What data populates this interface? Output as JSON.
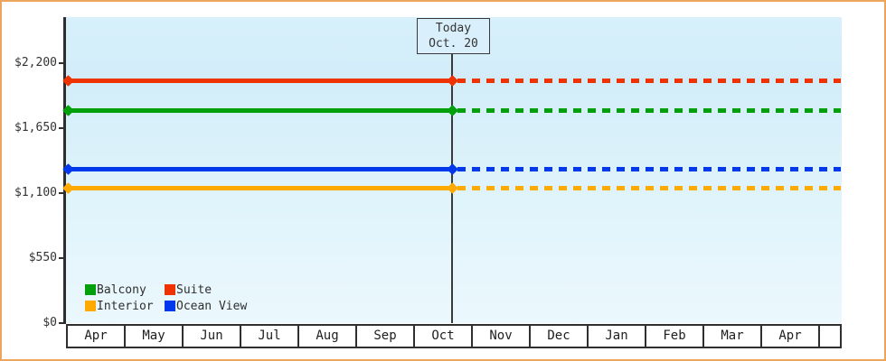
{
  "window": {
    "border_color": "#eba55d",
    "background": "#ffffff"
  },
  "chart": {
    "today_box": {
      "line1": "Today",
      "line2": "Oct. 20"
    },
    "y_axis": {
      "labels": [
        "$2,200",
        "$1,650",
        "$1,100",
        "$550",
        "$0"
      ],
      "values": [
        2200,
        1650,
        1100,
        550,
        0
      ]
    },
    "months": [
      "Apr",
      "May",
      "Jun",
      "Jul",
      "Aug",
      "Sep",
      "Oct",
      "Nov",
      "Dec",
      "Jan",
      "Feb",
      "Mar",
      "Apr"
    ],
    "legend": {
      "items": [
        {
          "label": "Balcony",
          "color": "#00a00a"
        },
        {
          "label": "Suite",
          "color": "#ee3300"
        },
        {
          "label": "Interior",
          "color": "#ffaa00"
        },
        {
          "label": "Ocean View",
          "color": "#0038ee"
        }
      ]
    }
  },
  "chart_data": {
    "type": "line",
    "title": "",
    "x_categories": [
      "Apr",
      "May",
      "Jun",
      "Jul",
      "Aug",
      "Sep",
      "Oct",
      "Nov",
      "Dec",
      "Jan",
      "Feb",
      "Mar",
      "Apr"
    ],
    "series": [
      {
        "name": "Suite",
        "color": "#ee3300",
        "value": 2050,
        "style": "solid-before-today-dashed-after"
      },
      {
        "name": "Balcony",
        "color": "#00a00a",
        "value": 1800,
        "style": "solid-before-today-dashed-after"
      },
      {
        "name": "Ocean View",
        "color": "#0038ee",
        "value": 1300,
        "style": "solid-before-today-dashed-after"
      },
      {
        "name": "Interior",
        "color": "#ffaa00",
        "value": 1140,
        "style": "solid-before-today-dashed-after"
      }
    ],
    "today_marker": {
      "label": "Today",
      "date": "Oct. 20",
      "month_index": 6,
      "day": 20
    },
    "y_ticks": [
      0,
      550,
      1100,
      1650,
      2200
    ],
    "ylim": [
      0,
      2600
    ],
    "grid": false,
    "legend_position": "bottom-left",
    "legend_entries": [
      "Balcony",
      "Suite",
      "Interior",
      "Ocean View"
    ]
  }
}
